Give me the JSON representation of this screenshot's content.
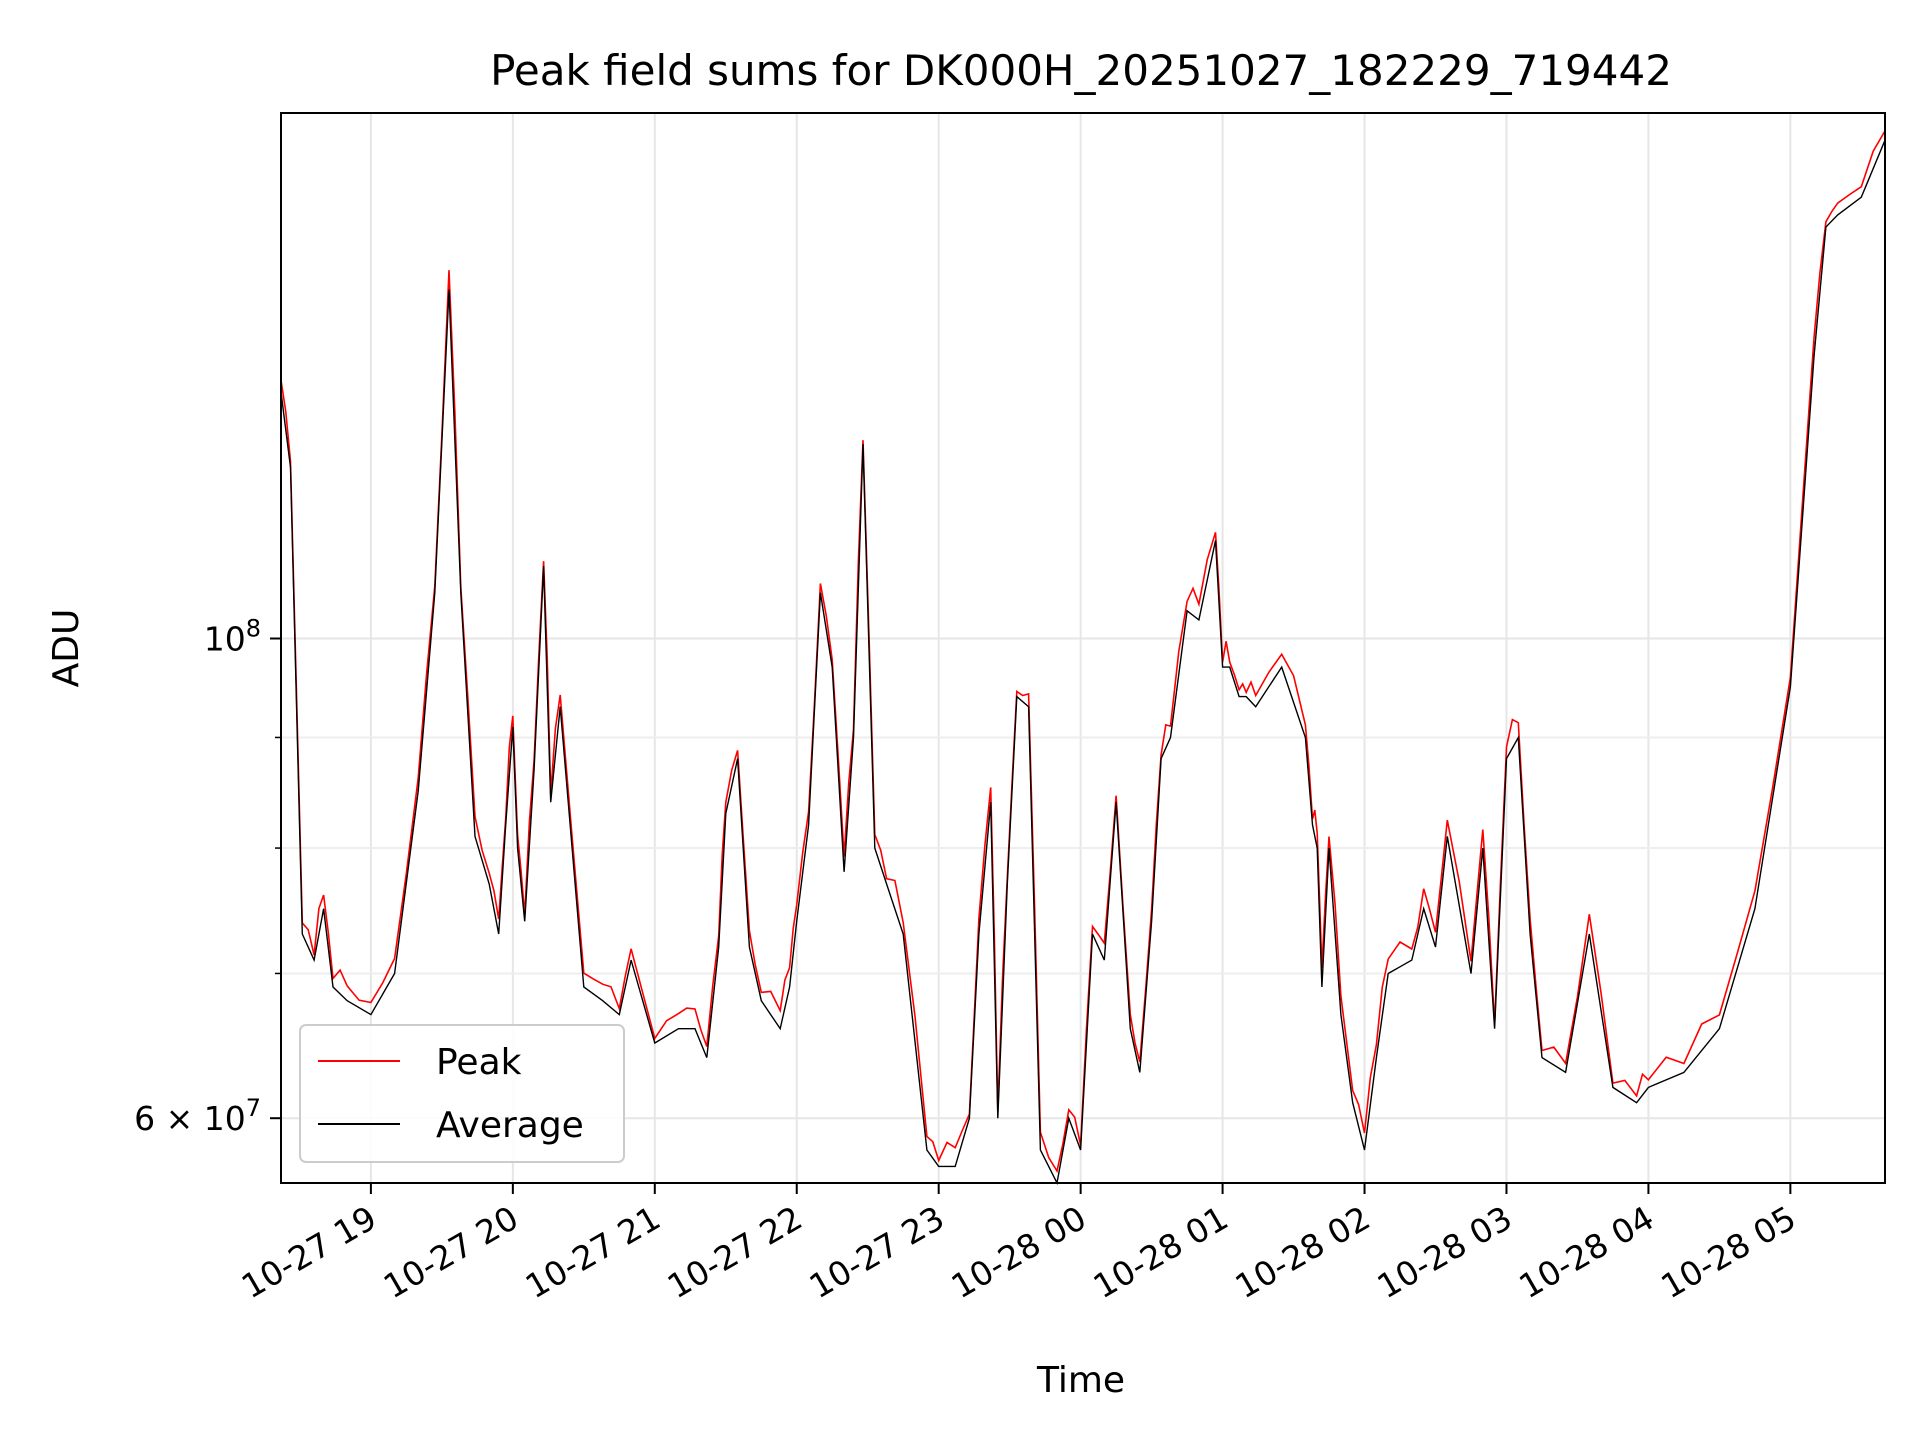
{
  "chart_data": {
    "type": "line",
    "title": "Peak field sums for DK000H_20251027_182229_719442",
    "xlabel": "Time",
    "ylabel": "ADU",
    "yscale": "log",
    "ylim": [
      56000000,
      175000000
    ],
    "xlim": [
      "10-27 18:22",
      "10-28 05:40"
    ],
    "grid": true,
    "legend_position": "lower-left",
    "x_ticks": [
      "10-27 19",
      "10-27 20",
      "10-27 21",
      "10-27 22",
      "10-27 23",
      "10-28 00",
      "10-28 01",
      "10-28 02",
      "10-28 03",
      "10-28 04",
      "10-28 05"
    ],
    "y_ticks": [
      {
        "label": "10",
        "exp": "8",
        "value": 100000000
      },
      {
        "label": "6 × 10",
        "exp": "7",
        "value": 60000000
      }
    ],
    "series": [
      {
        "name": "Peak",
        "color": "#ff0000"
      },
      {
        "name": "Average",
        "color": "#000000"
      }
    ],
    "x": [
      "10-27 18:22",
      "10-27 18:26",
      "10-27 18:31",
      "10-27 18:36",
      "10-27 18:40",
      "10-27 18:44",
      "10-27 18:50",
      "10-27 19:00",
      "10-27 19:10",
      "10-27 19:20",
      "10-27 19:27",
      "10-27 19:33",
      "10-27 19:38",
      "10-27 19:44",
      "10-27 19:50",
      "10-27 19:54",
      "10-27 19:57",
      "10-27 20:00",
      "10-27 20:02",
      "10-27 20:05",
      "10-27 20:09",
      "10-27 20:13",
      "10-27 20:16",
      "10-27 20:20",
      "10-27 20:30",
      "10-27 20:38",
      "10-27 20:45",
      "10-27 20:50",
      "10-27 21:00",
      "10-27 21:10",
      "10-27 21:17",
      "10-27 21:22",
      "10-27 21:27",
      "10-27 21:30",
      "10-27 21:35",
      "10-27 21:40",
      "10-27 21:45",
      "10-27 21:53",
      "10-27 21:57",
      "10-27 22:00",
      "10-27 22:05",
      "10-27 22:10",
      "10-27 22:15",
      "10-27 22:20",
      "10-27 22:24",
      "10-27 22:28",
      "10-27 22:33",
      "10-27 22:38",
      "10-27 22:45",
      "10-27 22:55",
      "10-27 23:00",
      "10-27 23:07",
      "10-27 23:13",
      "10-27 23:17",
      "10-27 23:22",
      "10-27 23:25",
      "10-27 23:29",
      "10-27 23:33",
      "10-27 23:38",
      "10-27 23:43",
      "10-27 23:50",
      "10-27 23:55",
      "10-28 00:00",
      "10-28 00:05",
      "10-28 00:10",
      "10-28 00:15",
      "10-28 00:21",
      "10-28 00:25",
      "10-28 00:30",
      "10-28 00:34",
      "10-28 00:38",
      "10-28 00:45",
      "10-28 00:50",
      "10-28 00:57",
      "10-28 01:00",
      "10-28 01:03",
      "10-28 01:07",
      "10-28 01:10",
      "10-28 01:14",
      "10-28 01:25",
      "10-28 01:35",
      "10-28 01:38",
      "10-28 01:40",
      "10-28 01:42",
      "10-28 01:45",
      "10-28 01:50",
      "10-28 01:55",
      "10-28 02:00",
      "10-28 02:05",
      "10-28 02:10",
      "10-28 02:20",
      "10-28 02:25",
      "10-28 02:30",
      "10-28 02:35",
      "10-28 02:45",
      "10-28 02:50",
      "10-28 02:55",
      "10-28 03:00",
      "10-28 03:05",
      "10-28 03:10",
      "10-28 03:15",
      "10-28 03:25",
      "10-28 03:35",
      "10-28 03:45",
      "10-28 03:55",
      "10-28 04:00",
      "10-28 04:15",
      "10-28 04:30",
      "10-28 04:45",
      "10-28 05:00",
      "10-28 05:10",
      "10-28 05:15",
      "10-28 05:20",
      "10-28 05:30",
      "10-28 05:40"
    ],
    "average": [
      130000000,
      120000000,
      73000000,
      71000000,
      75000000,
      69000000,
      68000000,
      67000000,
      70000000,
      85000000,
      105000000,
      145000000,
      105000000,
      81000000,
      77000000,
      73000000,
      82000000,
      91000000,
      80000000,
      74000000,
      87000000,
      108000000,
      84000000,
      93000000,
      69000000,
      68000000,
      67000000,
      71000000,
      65000000,
      66000000,
      66000000,
      64000000,
      72000000,
      83000000,
      88000000,
      72000000,
      68000000,
      66000000,
      69000000,
      74000000,
      82000000,
      105000000,
      97000000,
      78000000,
      90000000,
      123000000,
      80000000,
      77000000,
      73000000,
      58000000,
      57000000,
      57000000,
      60000000,
      73000000,
      84000000,
      60000000,
      77000000,
      94000000,
      93000000,
      58000000,
      56000000,
      60000000,
      58000000,
      73000000,
      71000000,
      84000000,
      66000000,
      63000000,
      74000000,
      88000000,
      90000000,
      103000000,
      102000000,
      111000000,
      97000000,
      97000000,
      94000000,
      94000000,
      93000000,
      97000000,
      90000000,
      82000000,
      80000000,
      69000000,
      80000000,
      67000000,
      61000000,
      58000000,
      64000000,
      70000000,
      71000000,
      75000000,
      72000000,
      81000000,
      70000000,
      80000000,
      66000000,
      88000000,
      90000000,
      73000000,
      64000000,
      63000000,
      73000000,
      62000000,
      61000000,
      62000000,
      63000000,
      66000000,
      75000000,
      95000000,
      135000000,
      155000000,
      157000000,
      160000000,
      170000000
    ]
  }
}
